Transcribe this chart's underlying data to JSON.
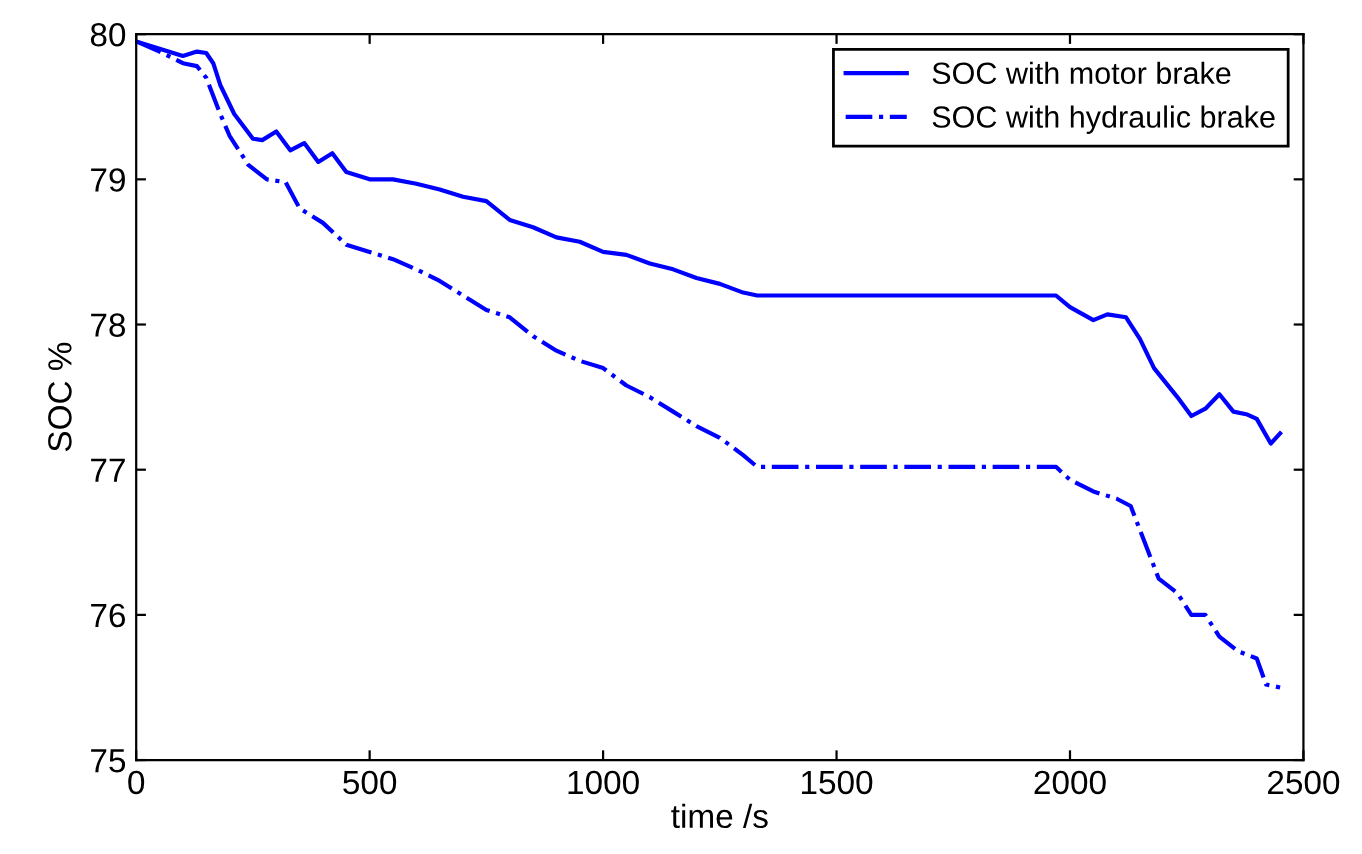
{
  "chart_data": {
    "type": "line",
    "xlabel": "time /s",
    "ylabel": "SOC %",
    "xlim": [
      0,
      2500
    ],
    "ylim": [
      75,
      80
    ],
    "xticks": [
      0,
      500,
      1000,
      1500,
      2000,
      2500
    ],
    "yticks": [
      75,
      76,
      77,
      78,
      79,
      80
    ],
    "grid": false,
    "legend": "top right",
    "marker": "none",
    "series": [
      {
        "name": "SOC with motor brake",
        "color": "#0000ff",
        "line_style": "solid",
        "x": [
          0,
          50,
          100,
          130,
          150,
          165,
          180,
          210,
          250,
          270,
          300,
          330,
          360,
          390,
          420,
          450,
          500,
          550,
          600,
          650,
          700,
          750,
          800,
          850,
          900,
          950,
          1000,
          1050,
          1100,
          1150,
          1200,
          1250,
          1300,
          1330,
          1970,
          2000,
          2050,
          2080,
          2120,
          2150,
          2180,
          2230,
          2260,
          2290,
          2320,
          2350,
          2380,
          2400,
          2430,
          2450
        ],
        "values": [
          79.95,
          79.9,
          79.85,
          79.88,
          79.87,
          79.8,
          79.65,
          79.45,
          79.28,
          79.27,
          79.33,
          79.2,
          79.25,
          79.12,
          79.18,
          79.05,
          79.0,
          79.0,
          78.97,
          78.93,
          78.88,
          78.85,
          78.72,
          78.67,
          78.6,
          78.57,
          78.5,
          78.48,
          78.42,
          78.38,
          78.32,
          78.28,
          78.22,
          78.2,
          78.2,
          78.12,
          78.03,
          78.07,
          78.05,
          77.9,
          77.7,
          77.5,
          77.37,
          77.42,
          77.52,
          77.4,
          77.38,
          77.35,
          77.18,
          77.25
        ]
      },
      {
        "name": "SOC with hydraulic brake",
        "color": "#0000ff",
        "line_style": "dashdot",
        "x": [
          0,
          50,
          100,
          130,
          150,
          180,
          200,
          240,
          280,
          320,
          350,
          400,
          450,
          500,
          550,
          600,
          650,
          700,
          750,
          800,
          850,
          900,
          950,
          1000,
          1050,
          1100,
          1150,
          1200,
          1250,
          1300,
          1330,
          1970,
          2000,
          2050,
          2100,
          2130,
          2160,
          2190,
          2230,
          2260,
          2290,
          2320,
          2360,
          2400,
          2420,
          2450
        ],
        "values": [
          79.95,
          79.88,
          79.8,
          79.78,
          79.7,
          79.45,
          79.3,
          79.1,
          79.0,
          78.98,
          78.8,
          78.7,
          78.55,
          78.5,
          78.45,
          78.38,
          78.3,
          78.2,
          78.1,
          78.05,
          77.92,
          77.82,
          77.75,
          77.7,
          77.58,
          77.5,
          77.4,
          77.3,
          77.22,
          77.1,
          77.02,
          77.02,
          76.93,
          76.85,
          76.8,
          76.75,
          76.5,
          76.25,
          76.15,
          76.0,
          76.0,
          75.85,
          75.75,
          75.7,
          75.52,
          75.5
        ]
      }
    ]
  }
}
